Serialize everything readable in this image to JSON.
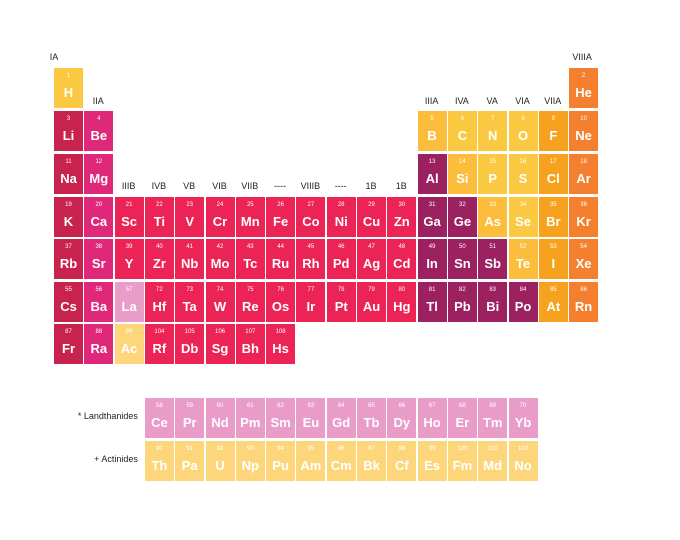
{
  "colors": {
    "alkali": "#c8234f",
    "alkaline": "#e0287a",
    "transition": "#ec2455",
    "post_transition": "#9b2160",
    "metalloid": "#fbbd3b",
    "nonmetal": "#fbc841",
    "halogen": "#f6a21f",
    "noble": "#f47f2f",
    "lanthanide": "#ea9cc8",
    "actinide": "#fdd67c"
  },
  "group_headers": [
    {
      "label": "IA",
      "col": 1,
      "row": 1
    },
    {
      "label": "VIIIA",
      "col": 18,
      "row": 1
    },
    {
      "label": "IIA",
      "col": 2,
      "row": 2
    },
    {
      "label": "IIIA",
      "col": 13,
      "row": 2
    },
    {
      "label": "IVA",
      "col": 14,
      "row": 2
    },
    {
      "label": "VA",
      "col": 15,
      "row": 2
    },
    {
      "label": "VIA",
      "col": 16,
      "row": 2
    },
    {
      "label": "VIIA",
      "col": 17,
      "row": 2
    },
    {
      "label": "IIIB",
      "col": 3,
      "row": 4
    },
    {
      "label": "IVB",
      "col": 4,
      "row": 4
    },
    {
      "label": "VB",
      "col": 5,
      "row": 4
    },
    {
      "label": "VIB",
      "col": 6,
      "row": 4
    },
    {
      "label": "VIIB",
      "col": 7,
      "row": 4
    },
    {
      "label": "----",
      "col": 8,
      "row": 4
    },
    {
      "label": "VIIIB",
      "col": 9,
      "row": 4
    },
    {
      "label": "----",
      "col": 10,
      "row": 4
    },
    {
      "label": "1B",
      "col": 11,
      "row": 4
    },
    {
      "label": "1B",
      "col": 12,
      "row": 4
    }
  ],
  "row_labels": [
    {
      "label": "* Landthanides",
      "row": 9
    },
    {
      "label": "+ Actinides",
      "row": 10
    }
  ],
  "elements": [
    {
      "n": "1",
      "s": "H",
      "r": 1,
      "c": 1,
      "cat": "nonmetal"
    },
    {
      "n": "2",
      "s": "He",
      "r": 1,
      "c": 18,
      "cat": "noble"
    },
    {
      "n": "3",
      "s": "Li",
      "r": 2,
      "c": 1,
      "cat": "alkali"
    },
    {
      "n": "4",
      "s": "Be",
      "r": 2,
      "c": 2,
      "cat": "alkaline"
    },
    {
      "n": "5",
      "s": "B",
      "r": 2,
      "c": 13,
      "cat": "metalloid"
    },
    {
      "n": "6",
      "s": "C",
      "r": 2,
      "c": 14,
      "cat": "nonmetal"
    },
    {
      "n": "7",
      "s": "N",
      "r": 2,
      "c": 15,
      "cat": "nonmetal"
    },
    {
      "n": "8",
      "s": "O",
      "r": 2,
      "c": 16,
      "cat": "nonmetal"
    },
    {
      "n": "9",
      "s": "F",
      "r": 2,
      "c": 17,
      "cat": "halogen"
    },
    {
      "n": "10",
      "s": "Ne",
      "r": 2,
      "c": 18,
      "cat": "noble"
    },
    {
      "n": "11",
      "s": "Na",
      "r": 3,
      "c": 1,
      "cat": "alkali"
    },
    {
      "n": "12",
      "s": "Mg",
      "r": 3,
      "c": 2,
      "cat": "alkaline"
    },
    {
      "n": "13",
      "s": "Al",
      "r": 3,
      "c": 13,
      "cat": "post_transition"
    },
    {
      "n": "14",
      "s": "Si",
      "r": 3,
      "c": 14,
      "cat": "metalloid"
    },
    {
      "n": "15",
      "s": "P",
      "r": 3,
      "c": 15,
      "cat": "nonmetal"
    },
    {
      "n": "16",
      "s": "S",
      "r": 3,
      "c": 16,
      "cat": "nonmetal"
    },
    {
      "n": "17",
      "s": "Cl",
      "r": 3,
      "c": 17,
      "cat": "halogen"
    },
    {
      "n": "18",
      "s": "Ar",
      "r": 3,
      "c": 18,
      "cat": "noble"
    },
    {
      "n": "19",
      "s": "K",
      "r": 4,
      "c": 1,
      "cat": "alkali"
    },
    {
      "n": "20",
      "s": "Ca",
      "r": 4,
      "c": 2,
      "cat": "alkaline"
    },
    {
      "n": "21",
      "s": "Sc",
      "r": 4,
      "c": 3,
      "cat": "transition"
    },
    {
      "n": "22",
      "s": "Ti",
      "r": 4,
      "c": 4,
      "cat": "transition"
    },
    {
      "n": "23",
      "s": "V",
      "r": 4,
      "c": 5,
      "cat": "transition"
    },
    {
      "n": "24",
      "s": "Cr",
      "r": 4,
      "c": 6,
      "cat": "transition"
    },
    {
      "n": "25",
      "s": "Mn",
      "r": 4,
      "c": 7,
      "cat": "transition"
    },
    {
      "n": "26",
      "s": "Fe",
      "r": 4,
      "c": 8,
      "cat": "transition"
    },
    {
      "n": "27",
      "s": "Co",
      "r": 4,
      "c": 9,
      "cat": "transition"
    },
    {
      "n": "28",
      "s": "Ni",
      "r": 4,
      "c": 10,
      "cat": "transition"
    },
    {
      "n": "29",
      "s": "Cu",
      "r": 4,
      "c": 11,
      "cat": "transition"
    },
    {
      "n": "30",
      "s": "Zn",
      "r": 4,
      "c": 12,
      "cat": "transition"
    },
    {
      "n": "31",
      "s": "Ga",
      "r": 4,
      "c": 13,
      "cat": "post_transition"
    },
    {
      "n": "32",
      "s": "Ge",
      "r": 4,
      "c": 14,
      "cat": "post_transition"
    },
    {
      "n": "33",
      "s": "As",
      "r": 4,
      "c": 15,
      "cat": "metalloid"
    },
    {
      "n": "34",
      "s": "Se",
      "r": 4,
      "c": 16,
      "cat": "nonmetal"
    },
    {
      "n": "35",
      "s": "Br",
      "r": 4,
      "c": 17,
      "cat": "halogen"
    },
    {
      "n": "36",
      "s": "Kr",
      "r": 4,
      "c": 18,
      "cat": "noble"
    },
    {
      "n": "37",
      "s": "Rb",
      "r": 5,
      "c": 1,
      "cat": "alkali"
    },
    {
      "n": "38",
      "s": "Sr",
      "r": 5,
      "c": 2,
      "cat": "alkaline"
    },
    {
      "n": "39",
      "s": "Y",
      "r": 5,
      "c": 3,
      "cat": "transition"
    },
    {
      "n": "40",
      "s": "Zr",
      "r": 5,
      "c": 4,
      "cat": "transition"
    },
    {
      "n": "41",
      "s": "Nb",
      "r": 5,
      "c": 5,
      "cat": "transition"
    },
    {
      "n": "42",
      "s": "Mo",
      "r": 5,
      "c": 6,
      "cat": "transition"
    },
    {
      "n": "43",
      "s": "Tc",
      "r": 5,
      "c": 7,
      "cat": "transition"
    },
    {
      "n": "44",
      "s": "Ru",
      "r": 5,
      "c": 8,
      "cat": "transition"
    },
    {
      "n": "45",
      "s": "Rh",
      "r": 5,
      "c": 9,
      "cat": "transition"
    },
    {
      "n": "46",
      "s": "Pd",
      "r": 5,
      "c": 10,
      "cat": "transition"
    },
    {
      "n": "47",
      "s": "Ag",
      "r": 5,
      "c": 11,
      "cat": "transition"
    },
    {
      "n": "48",
      "s": "Cd",
      "r": 5,
      "c": 12,
      "cat": "transition"
    },
    {
      "n": "49",
      "s": "In",
      "r": 5,
      "c": 13,
      "cat": "post_transition"
    },
    {
      "n": "50",
      "s": "Sn",
      "r": 5,
      "c": 14,
      "cat": "post_transition"
    },
    {
      "n": "51",
      "s": "Sb",
      "r": 5,
      "c": 15,
      "cat": "post_transition"
    },
    {
      "n": "52",
      "s": "Te",
      "r": 5,
      "c": 16,
      "cat": "metalloid"
    },
    {
      "n": "53",
      "s": "I",
      "r": 5,
      "c": 17,
      "cat": "halogen"
    },
    {
      "n": "54",
      "s": "Xe",
      "r": 5,
      "c": 18,
      "cat": "noble"
    },
    {
      "n": "55",
      "s": "Cs",
      "r": 6,
      "c": 1,
      "cat": "alkali"
    },
    {
      "n": "56",
      "s": "Ba",
      "r": 6,
      "c": 2,
      "cat": "alkaline"
    },
    {
      "n": "57",
      "s": "La",
      "r": 6,
      "c": 3,
      "cat": "lanthanide"
    },
    {
      "n": "72",
      "s": "Hf",
      "r": 6,
      "c": 4,
      "cat": "transition"
    },
    {
      "n": "73",
      "s": "Ta",
      "r": 6,
      "c": 5,
      "cat": "transition"
    },
    {
      "n": "74",
      "s": "W",
      "r": 6,
      "c": 6,
      "cat": "transition"
    },
    {
      "n": "75",
      "s": "Re",
      "r": 6,
      "c": 7,
      "cat": "transition"
    },
    {
      "n": "76",
      "s": "Os",
      "r": 6,
      "c": 8,
      "cat": "transition"
    },
    {
      "n": "77",
      "s": "Ir",
      "r": 6,
      "c": 9,
      "cat": "transition"
    },
    {
      "n": "78",
      "s": "Pt",
      "r": 6,
      "c": 10,
      "cat": "transition"
    },
    {
      "n": "79",
      "s": "Au",
      "r": 6,
      "c": 11,
      "cat": "transition"
    },
    {
      "n": "80",
      "s": "Hg",
      "r": 6,
      "c": 12,
      "cat": "transition"
    },
    {
      "n": "81",
      "s": "Tl",
      "r": 6,
      "c": 13,
      "cat": "post_transition"
    },
    {
      "n": "82",
      "s": "Pb",
      "r": 6,
      "c": 14,
      "cat": "post_transition"
    },
    {
      "n": "83",
      "s": "Bi",
      "r": 6,
      "c": 15,
      "cat": "post_transition"
    },
    {
      "n": "84",
      "s": "Po",
      "r": 6,
      "c": 16,
      "cat": "post_transition"
    },
    {
      "n": "85",
      "s": "At",
      "r": 6,
      "c": 17,
      "cat": "halogen"
    },
    {
      "n": "86",
      "s": "Rn",
      "r": 6,
      "c": 18,
      "cat": "noble"
    },
    {
      "n": "87",
      "s": "Fr",
      "r": 7,
      "c": 1,
      "cat": "alkali"
    },
    {
      "n": "88",
      "s": "Ra",
      "r": 7,
      "c": 2,
      "cat": "alkaline"
    },
    {
      "n": "89",
      "s": "Ac",
      "r": 7,
      "c": 3,
      "cat": "actinide"
    },
    {
      "n": "104",
      "s": "Rf",
      "r": 7,
      "c": 4,
      "cat": "transition"
    },
    {
      "n": "105",
      "s": "Db",
      "r": 7,
      "c": 5,
      "cat": "transition"
    },
    {
      "n": "106",
      "s": "Sg",
      "r": 7,
      "c": 6,
      "cat": "transition"
    },
    {
      "n": "107",
      "s": "Bh",
      "r": 7,
      "c": 7,
      "cat": "transition"
    },
    {
      "n": "108",
      "s": "Hs",
      "r": 7,
      "c": 8,
      "cat": "transition"
    },
    {
      "n": "58",
      "s": "Ce",
      "r": 9,
      "c": 4,
      "cat": "lanthanide"
    },
    {
      "n": "59",
      "s": "Pr",
      "r": 9,
      "c": 5,
      "cat": "lanthanide"
    },
    {
      "n": "60",
      "s": "Nd",
      "r": 9,
      "c": 6,
      "cat": "lanthanide"
    },
    {
      "n": "61",
      "s": "Pm",
      "r": 9,
      "c": 7,
      "cat": "lanthanide"
    },
    {
      "n": "62",
      "s": "Sm",
      "r": 9,
      "c": 8,
      "cat": "lanthanide"
    },
    {
      "n": "63",
      "s": "Eu",
      "r": 9,
      "c": 9,
      "cat": "lanthanide"
    },
    {
      "n": "64",
      "s": "Gd",
      "r": 9,
      "c": 10,
      "cat": "lanthanide"
    },
    {
      "n": "65",
      "s": "Tb",
      "r": 9,
      "c": 11,
      "cat": "lanthanide"
    },
    {
      "n": "66",
      "s": "Dy",
      "r": 9,
      "c": 12,
      "cat": "lanthanide"
    },
    {
      "n": "67",
      "s": "Ho",
      "r": 9,
      "c": 13,
      "cat": "lanthanide"
    },
    {
      "n": "68",
      "s": "Er",
      "r": 9,
      "c": 14,
      "cat": "lanthanide"
    },
    {
      "n": "69",
      "s": "Tm",
      "r": 9,
      "c": 15,
      "cat": "lanthanide"
    },
    {
      "n": "70",
      "s": "Yb",
      "r": 9,
      "c": 16,
      "cat": "lanthanide"
    },
    {
      "n": "90",
      "s": "Th",
      "r": 10,
      "c": 4,
      "cat": "actinide"
    },
    {
      "n": "91",
      "s": "Pa",
      "r": 10,
      "c": 5,
      "cat": "actinide"
    },
    {
      "n": "92",
      "s": "U",
      "r": 10,
      "c": 6,
      "cat": "actinide"
    },
    {
      "n": "93",
      "s": "Np",
      "r": 10,
      "c": 7,
      "cat": "actinide"
    },
    {
      "n": "94",
      "s": "Pu",
      "r": 10,
      "c": 8,
      "cat": "actinide"
    },
    {
      "n": "95",
      "s": "Am",
      "r": 10,
      "c": 9,
      "cat": "actinide"
    },
    {
      "n": "96",
      "s": "Cm",
      "r": 10,
      "c": 10,
      "cat": "actinide"
    },
    {
      "n": "97",
      "s": "Bk",
      "r": 10,
      "c": 11,
      "cat": "actinide"
    },
    {
      "n": "98",
      "s": "Cf",
      "r": 10,
      "c": 12,
      "cat": "actinide"
    },
    {
      "n": "99",
      "s": "Es",
      "r": 10,
      "c": 13,
      "cat": "actinide"
    },
    {
      "n": "100",
      "s": "Fm",
      "r": 10,
      "c": 14,
      "cat": "actinide"
    },
    {
      "n": "101",
      "s": "Md",
      "r": 10,
      "c": 15,
      "cat": "actinide"
    },
    {
      "n": "102",
      "s": "No",
      "r": 10,
      "c": 16,
      "cat": "actinide"
    }
  ]
}
